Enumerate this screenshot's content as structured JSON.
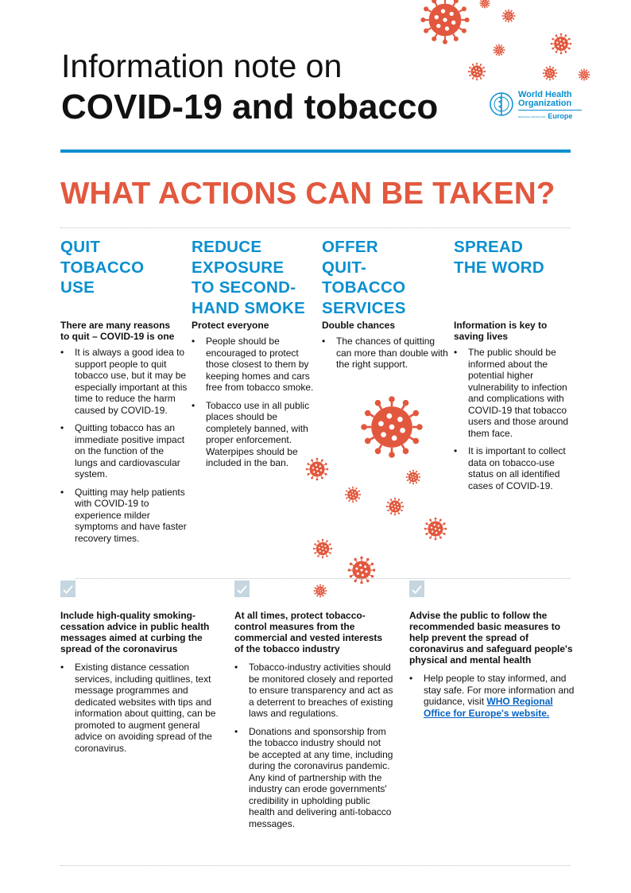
{
  "header": {
    "title_line1": "Information note on",
    "title_line2": "COVID-19 and tobacco",
    "logo": {
      "name": "World Health Organization",
      "sub_left": "REGIONAL OFFICE FOR",
      "region": "Europe"
    }
  },
  "section_heading": "WHAT ACTIONS CAN BE TAKEN?",
  "columns": [
    {
      "heading": [
        "QUIT",
        "TOBACCO",
        "USE"
      ],
      "subheading": "There are many reasons to quit – COVID-19 is one",
      "bullets": [
        "It is always a good idea to support people to quit tobacco use, but it may be especially important at this time to reduce the harm caused by COVID-19.",
        "Quitting tobacco has an immediate positive impact on the function of the lungs and cardiovascular system.",
        "Quitting may help patients with COVID-19 to experience milder symptoms and have faster recovery times."
      ]
    },
    {
      "heading": [
        "REDUCE",
        "EXPOSURE",
        "TO SECOND-",
        "HAND SMOKE"
      ],
      "subheading": "Protect everyone",
      "bullets": [
        "People should be encouraged to protect those closest to them by keeping homes and cars free from tobacco smoke.",
        "Tobacco use in all public places should be completely banned, with proper enforcement. Waterpipes should be included in the ban."
      ]
    },
    {
      "heading": [
        "OFFER",
        "QUIT-",
        "TOBACCO",
        "SERVICES"
      ],
      "subheading": "Double chances",
      "bullets": [
        "The chances of quitting can more than double with the right support."
      ]
    },
    {
      "heading": [
        "SPREAD",
        "THE WORD"
      ],
      "subheading": "Information is key to saving lives",
      "bullets": [
        "The public should be informed about the potential higher vulnerability to infection and complications with COVID-19 that tobacco users and those around them face.",
        "It is important to collect data on tobacco-use status on all identified cases of COVID-19."
      ]
    }
  ],
  "recommendations": [
    {
      "heading": "Include high-quality smoking-cessation advice in public health messages aimed at curbing the spread of the coronavirus",
      "bullets": [
        "Existing distance cessation services, including quitlines, text message programmes and dedicated websites with tips and information about quitting, can be promoted to augment general advice on avoiding spread of the coronavirus."
      ]
    },
    {
      "heading": "At all times, protect tobacco-control measures from the commercial and vested interests of the tobacco industry",
      "bullets": [
        "Tobacco-industry activities should be monitored closely and reported to ensure transparency and act as a deterrent to breaches of existing laws and regulations.",
        "Donations and sponsorship from the tobacco industry should not be accepted at any time, including during the coronavirus pandemic. Any kind of partnership with the industry can erode governments' credibility in upholding public health and delivering anti-tobacco messages."
      ]
    },
    {
      "heading": "Advise the public to follow the recommended basic measures to help prevent the spread of coronavirus and safeguard people's physical and mental health",
      "bullet_text": "Help people to stay informed, and stay safe. For more information and guidance, visit ",
      "link_text": "WHO Regional Office for Europe's website."
    }
  ],
  "colors": {
    "accent_red": "#e2583e",
    "accent_blue": "#0a8fcf",
    "check_box": "#c5d6e0"
  },
  "icons": [
    "virus-icon",
    "check-icon",
    "who-emblem-icon"
  ]
}
